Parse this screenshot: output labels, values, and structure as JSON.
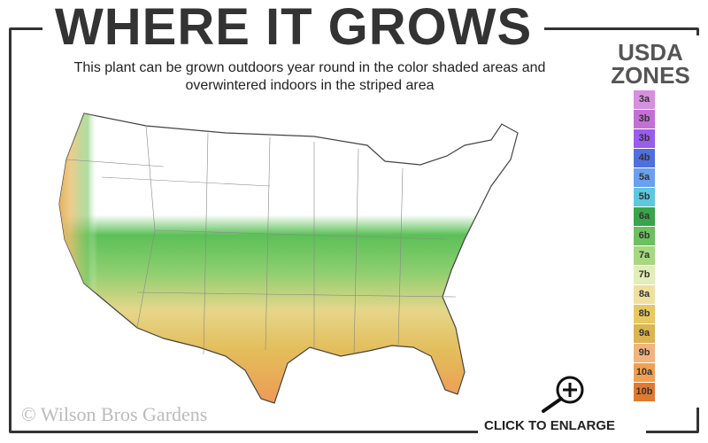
{
  "header": {
    "title": "WHERE IT GROWS",
    "subtitle": "This plant can be grown outdoors year round in the color shaded areas and overwintered indoors in the striped area"
  },
  "legend": {
    "title_line1": "USDA",
    "title_line2": "ZONES",
    "zones": [
      {
        "label": "3a",
        "color": "#d88fe0"
      },
      {
        "label": "3b",
        "color": "#c46fd6"
      },
      {
        "label": "3b",
        "color": "#9a5cf0"
      },
      {
        "label": "4b",
        "color": "#4f6fe0"
      },
      {
        "label": "5a",
        "color": "#6aa0f0"
      },
      {
        "label": "5b",
        "color": "#5cc8e0"
      },
      {
        "label": "6a",
        "color": "#3aa548"
      },
      {
        "label": "6b",
        "color": "#6cc060"
      },
      {
        "label": "7a",
        "color": "#a6d880"
      },
      {
        "label": "7b",
        "color": "#e2edb8"
      },
      {
        "label": "8a",
        "color": "#efe0a0"
      },
      {
        "label": "8b",
        "color": "#e8c860"
      },
      {
        "label": "9a",
        "color": "#dcb450"
      },
      {
        "label": "9b",
        "color": "#f2b47c"
      },
      {
        "label": "10a",
        "color": "#f0a050"
      },
      {
        "label": "10b",
        "color": "#e07a30"
      }
    ]
  },
  "footer": {
    "copyright": "© Wilson Bros Gardens",
    "enlarge_label": "CLICK TO ENLARGE"
  },
  "icons": {
    "enlarge": "magnifier-plus-icon"
  }
}
